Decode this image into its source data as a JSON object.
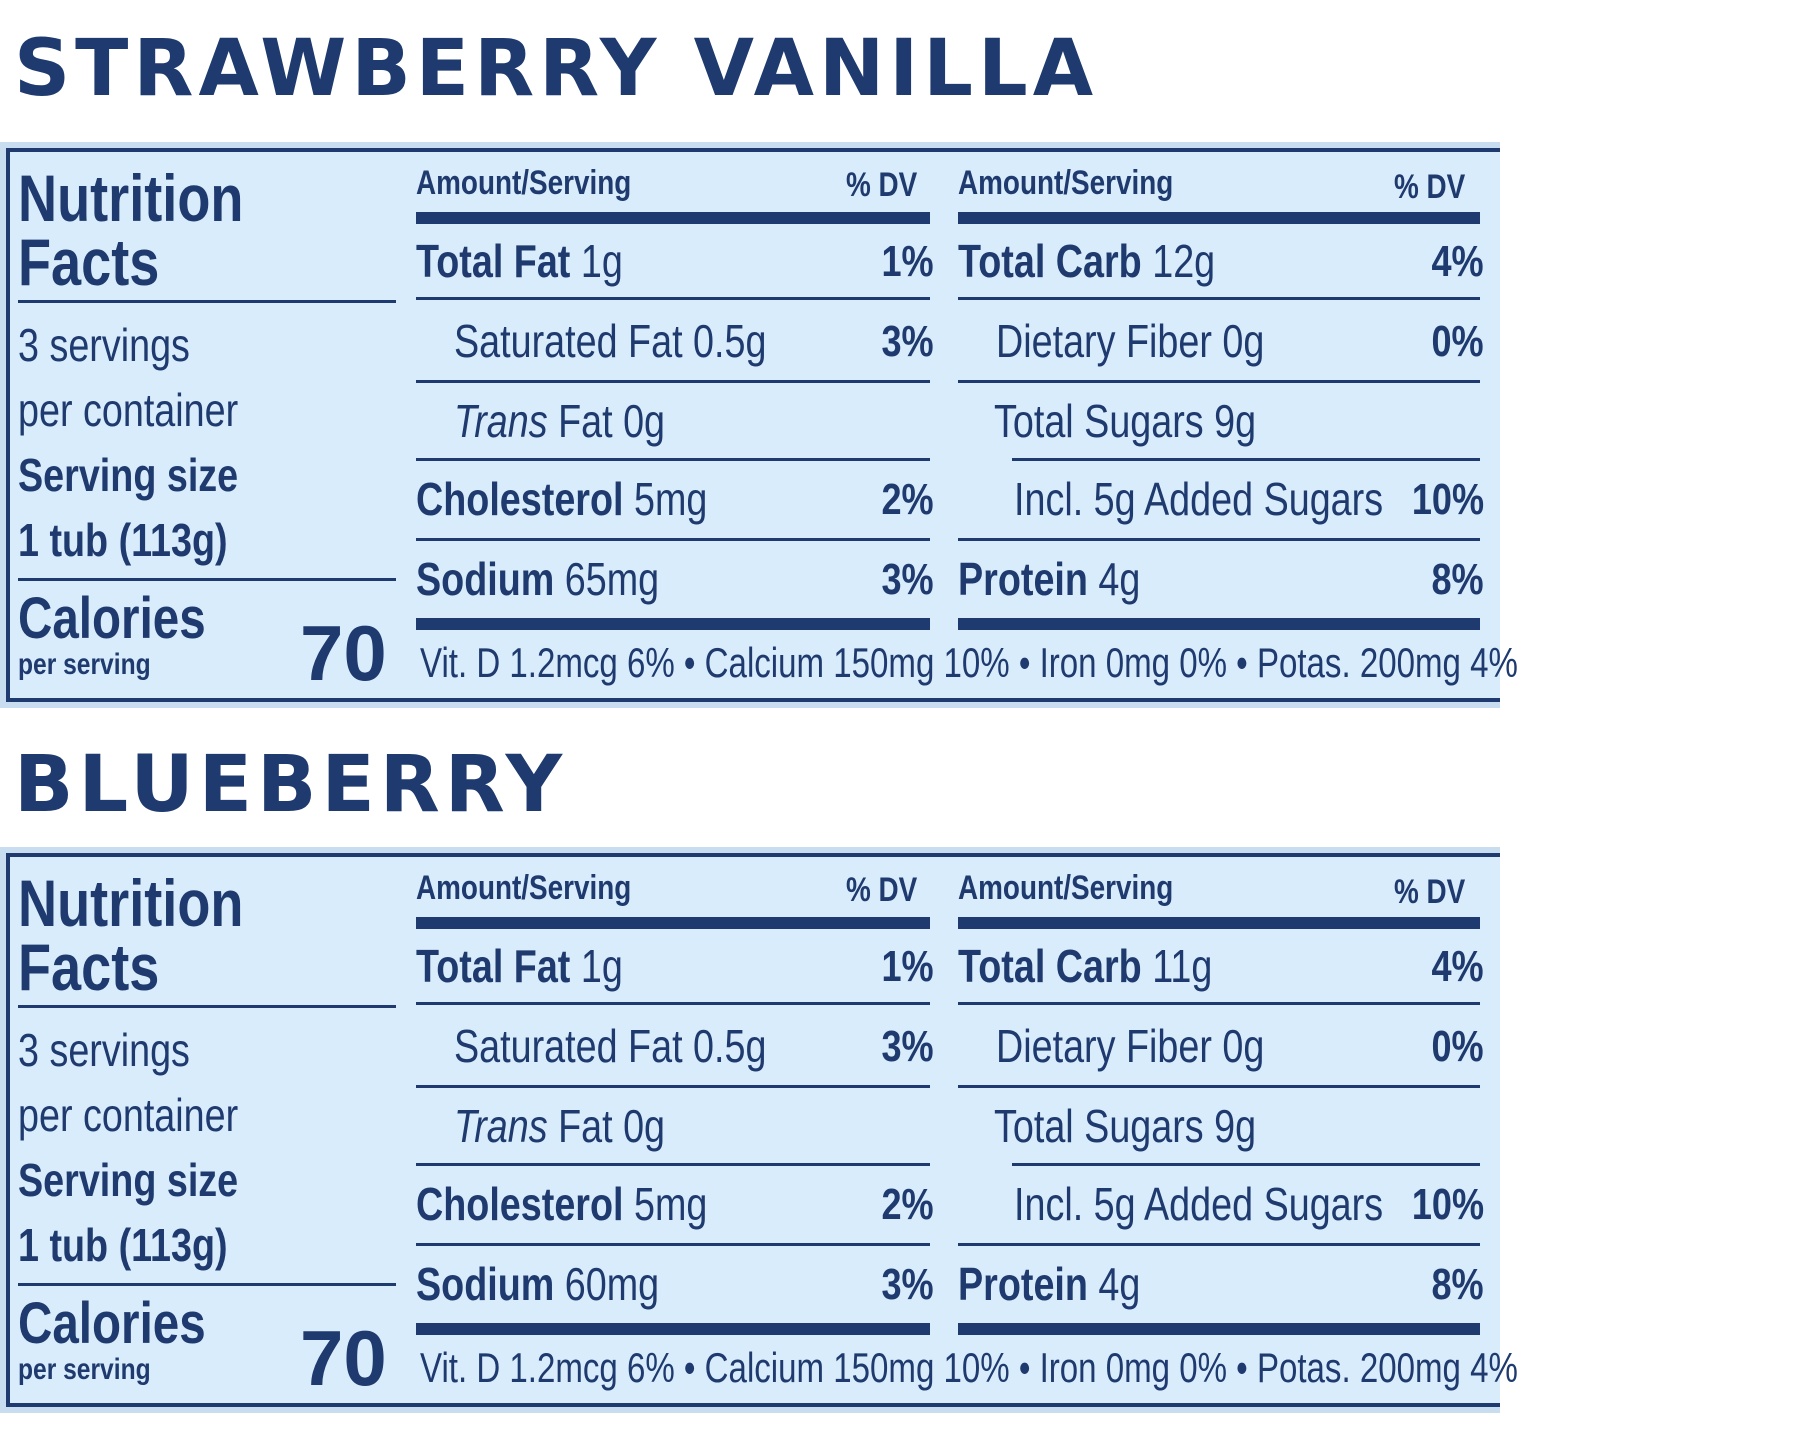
{
  "labels": [
    {
      "flavor": "STRAWBERRY VANILLA",
      "nf_line1": "Nutrition",
      "nf_line2": "Facts",
      "servings_line1": "3 servings",
      "servings_line2": "per container",
      "serving_size_label": "Serving size",
      "serving_size_value": "1 tub (113g)",
      "calories_label": "Calories",
      "calories_sub": "per serving",
      "calories_value": "70",
      "col_header_amount": "Amount/Serving",
      "col_header_dv": "% DV",
      "left_rows": [
        {
          "name": "Total Fat",
          "amount": "1g",
          "dv": "1%"
        },
        {
          "name": "Saturated Fat 0.5g",
          "amount": "",
          "dv": "3%"
        },
        {
          "name": "Trans",
          "amount": "Fat 0g",
          "dv": ""
        },
        {
          "name": "Cholesterol",
          "amount": "5mg",
          "dv": "2%"
        },
        {
          "name": "Sodium",
          "amount": "65mg",
          "dv": "3%"
        }
      ],
      "right_rows": [
        {
          "name": "Total Carb",
          "amount": "12g",
          "dv": "4%"
        },
        {
          "name": "Dietary Fiber 0g",
          "amount": "",
          "dv": "0%"
        },
        {
          "name": "Total Sugars 9g",
          "amount": "",
          "dv": ""
        },
        {
          "name": "Incl. 5g Added Sugars",
          "amount": "",
          "dv": "10%"
        },
        {
          "name": "Protein",
          "amount": "4g",
          "dv": "8%"
        }
      ],
      "vitamins": "Vit. D 1.2mcg 6% • Calcium 150mg 10% • Iron 0mg 0% • Potas. 200mg 4%"
    },
    {
      "flavor": "BLUEBERRY",
      "nf_line1": "Nutrition",
      "nf_line2": "Facts",
      "servings_line1": "3 servings",
      "servings_line2": "per container",
      "serving_size_label": "Serving size",
      "serving_size_value": "1 tub (113g)",
      "calories_label": "Calories",
      "calories_sub": "per serving",
      "calories_value": "70",
      "col_header_amount": "Amount/Serving",
      "col_header_dv": "% DV",
      "left_rows": [
        {
          "name": "Total Fat",
          "amount": "1g",
          "dv": "1%"
        },
        {
          "name": "Saturated Fat 0.5g",
          "amount": "",
          "dv": "3%"
        },
        {
          "name": "Trans",
          "amount": "Fat 0g",
          "dv": ""
        },
        {
          "name": "Cholesterol",
          "amount": "5mg",
          "dv": "2%"
        },
        {
          "name": "Sodium",
          "amount": "60mg",
          "dv": "3%"
        }
      ],
      "right_rows": [
        {
          "name": "Total Carb",
          "amount": "11g",
          "dv": "4%"
        },
        {
          "name": "Dietary Fiber 0g",
          "amount": "",
          "dv": "0%"
        },
        {
          "name": "Total Sugars 9g",
          "amount": "",
          "dv": ""
        },
        {
          "name": "Incl. 5g Added Sugars",
          "amount": "",
          "dv": "10%"
        },
        {
          "name": "Protein",
          "amount": "4g",
          "dv": "8%"
        }
      ],
      "vitamins": "Vit. D 1.2mcg 6% • Calcium 150mg 10% • Iron 0mg 0% • Potas. 200mg 4%"
    }
  ],
  "colors": {
    "ink": "#1e3a6e",
    "panel_bg": "#d9ecfb",
    "panel_border_bg": "#c8def0"
  }
}
